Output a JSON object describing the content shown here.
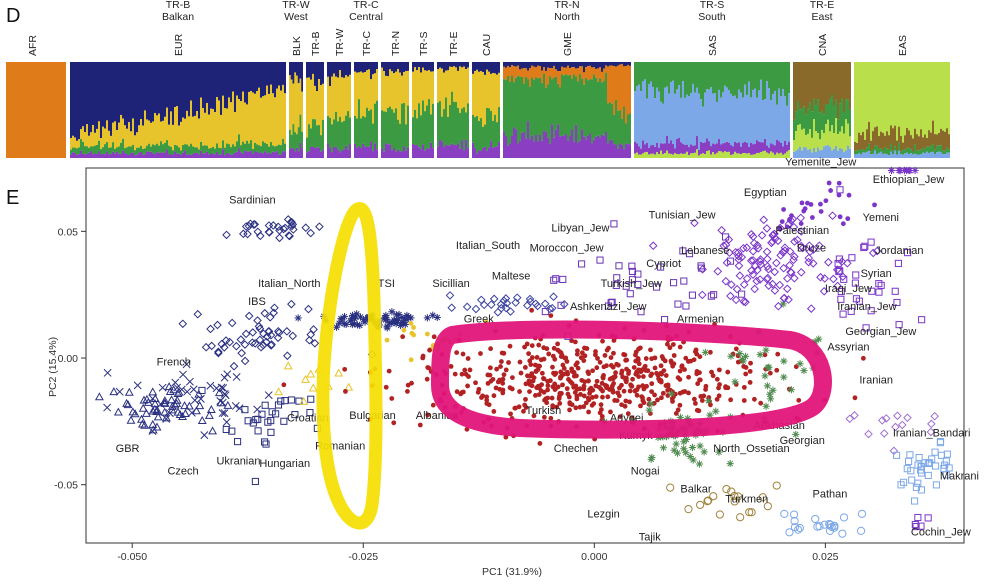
{
  "panel_d": {
    "letter": "D",
    "groups": [
      {
        "label1": "TR-B",
        "label2": "Balkan",
        "pop": "EUR",
        "colors": [
          "#1e2378",
          "#e8c42c",
          "#3c9a42",
          "#8a3fc2"
        ],
        "split": [
          0.55,
          0.32,
          0.08,
          0.05
        ]
      },
      {
        "label1": "TR-W",
        "label2": "West",
        "pop": "BLK",
        "colors": [
          "#1e2378",
          "#e8c42c",
          "#3c9a42",
          "#8a3fc2"
        ],
        "split": [
          0.2,
          0.5,
          0.2,
          0.1
        ]
      },
      {
        "label1": "",
        "label2": "",
        "pop": "TR-B",
        "colors": [
          "#1e2378",
          "#e8c42c",
          "#3c9a42",
          "#8a3fc2"
        ],
        "split": [
          0.2,
          0.45,
          0.25,
          0.1
        ]
      },
      {
        "label1": "",
        "label2": "",
        "pop": "TR-W",
        "colors": [
          "#1e2378",
          "#e8c42c",
          "#3c9a42",
          "#8a3fc2"
        ],
        "split": [
          0.15,
          0.45,
          0.3,
          0.1
        ]
      },
      {
        "label1": "TR-C",
        "label2": "Central",
        "pop": "TR-C",
        "colors": [
          "#1e2378",
          "#e8c42c",
          "#3c9a42",
          "#8a3fc2"
        ],
        "split": [
          0.1,
          0.4,
          0.38,
          0.12
        ]
      },
      {
        "label1": "",
        "label2": "",
        "pop": "TR-N",
        "colors": [
          "#1e2378",
          "#e8c42c",
          "#3c9a42",
          "#8a3fc2"
        ],
        "split": [
          0.1,
          0.42,
          0.38,
          0.1
        ]
      },
      {
        "label1": "",
        "label2": "",
        "pop": "TR-S",
        "colors": [
          "#1e2378",
          "#e8c42c",
          "#3c9a42",
          "#8a3fc2"
        ],
        "split": [
          0.08,
          0.4,
          0.4,
          0.12
        ]
      },
      {
        "label1": "",
        "label2": "",
        "pop": "TR-E",
        "colors": [
          "#1e2378",
          "#e8c42c",
          "#3c9a42",
          "#8a3fc2"
        ],
        "split": [
          0.06,
          0.38,
          0.42,
          0.14
        ]
      },
      {
        "label1": "",
        "label2": "",
        "pop": "CAU",
        "colors": [
          "#1e2378",
          "#e8c42c",
          "#3c9a42",
          "#8a3fc2"
        ],
        "split": [
          0.1,
          0.45,
          0.35,
          0.1
        ]
      },
      {
        "label1": "TR-N",
        "label2": "North",
        "pop": "GME",
        "colors": [
          "#1e2378",
          "#e07b1a",
          "#3c9a42",
          "#8a3fc2"
        ],
        "split": [
          0.05,
          0.25,
          0.5,
          0.2
        ]
      },
      {
        "label1": "TR-S",
        "label2": "South",
        "pop": "SAS",
        "colors": [
          "#3c9a42",
          "#7da8e8",
          "#8a3fc2",
          "#b9e04a"
        ],
        "split": [
          0.3,
          0.55,
          0.1,
          0.05
        ]
      },
      {
        "label1": "TR-E",
        "label2": "East",
        "pop": "CNA",
        "colors": [
          "#8a6a2a",
          "#3c9a42",
          "#b9e04a",
          "#7da8e8"
        ],
        "split": [
          0.45,
          0.25,
          0.2,
          0.1
        ]
      },
      {
        "label1": "",
        "label2": "",
        "pop": "EAS",
        "colors": [
          "#b9e04a",
          "#8a6a2a",
          "#3c9a42",
          "#7da8e8"
        ],
        "split": [
          0.75,
          0.15,
          0.05,
          0.05
        ]
      }
    ],
    "afr": {
      "pop": "AFR",
      "color": "#e07b1a"
    }
  },
  "chart_data": {
    "type": "scatter",
    "panel_letter": "E",
    "xlabel": "PC1 (31.9%)",
    "ylabel": "PC2 (15.4%)",
    "xlim": [
      -0.055,
      0.04
    ],
    "ylim": [
      -0.073,
      0.075
    ],
    "xticks": [
      {
        "v": -0.05,
        "label": "-0.050"
      },
      {
        "v": -0.025,
        "label": "-0.025"
      },
      {
        "v": 0.0,
        "label": "0.000"
      },
      {
        "v": 0.025,
        "label": "0.025"
      }
    ],
    "yticks": [
      {
        "v": 0.05,
        "label": "0.05"
      },
      {
        "v": 0.0,
        "label": "0.00"
      },
      {
        "v": -0.05,
        "label": "-0.05"
      }
    ],
    "labels": [
      {
        "text": "Sardinian",
        "x": -0.037,
        "y": 0.061
      },
      {
        "text": "Italian_North",
        "x": -0.033,
        "y": 0.028
      },
      {
        "text": "IBS",
        "x": -0.0365,
        "y": 0.021
      },
      {
        "text": "TSI",
        "x": -0.0225,
        "y": 0.028
      },
      {
        "text": "French",
        "x": -0.0455,
        "y": -0.003
      },
      {
        "text": "Croatian",
        "x": -0.031,
        "y": -0.025
      },
      {
        "text": "Bulgarian",
        "x": -0.024,
        "y": -0.024
      },
      {
        "text": "Albanian",
        "x": -0.017,
        "y": -0.024
      },
      {
        "text": "Romanian",
        "x": -0.0275,
        "y": -0.036
      },
      {
        "text": "Hungarian",
        "x": -0.0335,
        "y": -0.043
      },
      {
        "text": "GBR",
        "x": -0.0505,
        "y": -0.037
      },
      {
        "text": "Czech",
        "x": -0.0445,
        "y": -0.046
      },
      {
        "text": "Ukranian",
        "x": -0.0385,
        "y": -0.042
      },
      {
        "text": "Italian_South",
        "x": -0.0115,
        "y": 0.043
      },
      {
        "text": "Sicillian",
        "x": -0.0155,
        "y": 0.028
      },
      {
        "text": "Maltese",
        "x": -0.009,
        "y": 0.031
      },
      {
        "text": "Greek",
        "x": -0.0125,
        "y": 0.014
      },
      {
        "text": "Libyan_Jew",
        "x": -0.0015,
        "y": 0.05
      },
      {
        "text": "Tunisian_Jew",
        "x": 0.0095,
        "y": 0.055
      },
      {
        "text": "Moroccon_Jew",
        "x": -0.003,
        "y": 0.042
      },
      {
        "text": "Cypriot",
        "x": 0.0075,
        "y": 0.036
      },
      {
        "text": "Turkish_Jew",
        "x": 0.004,
        "y": 0.028
      },
      {
        "text": "Ashkenazi_Jew",
        "x": 0.0015,
        "y": 0.019
      },
      {
        "text": "Lebanese",
        "x": 0.012,
        "y": 0.041
      },
      {
        "text": "Egyptian",
        "x": 0.0185,
        "y": 0.064
      },
      {
        "text": "Yemenite_Jew",
        "x": 0.0245,
        "y": 0.076
      },
      {
        "text": "Ethiopian_Jew",
        "x": 0.034,
        "y": 0.069
      },
      {
        "text": "Yemeni",
        "x": 0.031,
        "y": 0.054
      },
      {
        "text": "Palestinian",
        "x": 0.0225,
        "y": 0.049
      },
      {
        "text": "Druze",
        "x": 0.0235,
        "y": 0.042
      },
      {
        "text": "Jordanian",
        "x": 0.033,
        "y": 0.041
      },
      {
        "text": "Syrian",
        "x": 0.0305,
        "y": 0.032
      },
      {
        "text": "Iraqi_Jew",
        "x": 0.0275,
        "y": 0.026
      },
      {
        "text": "Iranian_Jew",
        "x": 0.0295,
        "y": 0.019
      },
      {
        "text": "Georgian_Jew",
        "x": 0.031,
        "y": 0.009
      },
      {
        "text": "Armenian",
        "x": 0.0115,
        "y": 0.014
      },
      {
        "text": "Assyrian",
        "x": 0.0275,
        "y": 0.003
      },
      {
        "text": "Iranian",
        "x": 0.0305,
        "y": -0.01
      },
      {
        "text": "Turkish",
        "x": -0.0055,
        "y": -0.022
      },
      {
        "text": "Adygei",
        "x": 0.0035,
        "y": -0.025
      },
      {
        "text": "Kumyk",
        "x": 0.0045,
        "y": -0.032
      },
      {
        "text": "Chechen",
        "x": -0.002,
        "y": -0.037
      },
      {
        "text": "Nogai",
        "x": 0.0055,
        "y": -0.046
      },
      {
        "text": "Balkar",
        "x": 0.011,
        "y": -0.053
      },
      {
        "text": "Lezgin",
        "x": 0.001,
        "y": -0.063
      },
      {
        "text": "Tajik",
        "x": 0.006,
        "y": -0.072
      },
      {
        "text": "North_Ossetian",
        "x": 0.017,
        "y": -0.037
      },
      {
        "text": "Abkhasian",
        "x": 0.02,
        "y": -0.028
      },
      {
        "text": "Georgian",
        "x": 0.0225,
        "y": -0.034
      },
      {
        "text": "Turkmen",
        "x": 0.0165,
        "y": -0.057
      },
      {
        "text": "Pathan",
        "x": 0.0255,
        "y": -0.055
      },
      {
        "text": "Iranian_Bandari",
        "x": 0.0365,
        "y": -0.031
      },
      {
        "text": "Makrani",
        "x": 0.0395,
        "y": -0.048
      },
      {
        "text": "Cochin_Jew",
        "x": 0.0375,
        "y": -0.07
      }
    ],
    "clusters": [
      {
        "cx": -0.046,
        "cy": -0.02,
        "sx": 0.0035,
        "sy": 0.004,
        "n": 60,
        "color": "#2a3080",
        "shape": "triangle"
      },
      {
        "cx": -0.043,
        "cy": -0.016,
        "sx": 0.004,
        "sy": 0.006,
        "n": 40,
        "color": "#2a3080",
        "shape": "cross"
      },
      {
        "cx": -0.036,
        "cy": 0.009,
        "sx": 0.004,
        "sy": 0.005,
        "n": 55,
        "color": "#2a3080",
        "shape": "diamond"
      },
      {
        "cx": -0.0355,
        "cy": 0.051,
        "sx": 0.0025,
        "sy": 0.002,
        "n": 30,
        "color": "#2a3080",
        "shape": "diamondx"
      },
      {
        "cx": -0.034,
        "cy": -0.022,
        "sx": 0.0035,
        "sy": 0.006,
        "n": 30,
        "color": "#2a3080",
        "shape": "boxplus"
      },
      {
        "cx": -0.0235,
        "cy": 0.015,
        "sx": 0.003,
        "sy": 0.002,
        "n": 65,
        "color": "#2a3080",
        "shape": "star"
      },
      {
        "cx": -0.03,
        "cy": -0.01,
        "sx": 0.002,
        "sy": 0.003,
        "n": 10,
        "color": "#e8c42c",
        "shape": "triangle"
      },
      {
        "cx": -0.019,
        "cy": 0.006,
        "sx": 0.002,
        "sy": 0.004,
        "n": 18,
        "color": "#e8c42c",
        "shape": "dot"
      },
      {
        "cx": -0.01,
        "cy": 0.021,
        "sx": 0.003,
        "sy": 0.002,
        "n": 28,
        "color": "#3a42a0",
        "shape": "diamondx"
      },
      {
        "cx": 0.0,
        "cy": -0.008,
        "sx": 0.01,
        "sy": 0.009,
        "n": 560,
        "color": "#b22222",
        "shape": "dot"
      },
      {
        "cx": 0.01,
        "cy": -0.03,
        "sx": 0.003,
        "sy": 0.006,
        "n": 60,
        "color": "#4f8a4f",
        "shape": "star"
      },
      {
        "cx": 0.019,
        "cy": -0.005,
        "sx": 0.003,
        "sy": 0.01,
        "n": 30,
        "color": "#4f8a4f",
        "shape": "star"
      },
      {
        "cx": 0.019,
        "cy": 0.038,
        "sx": 0.004,
        "sy": 0.009,
        "n": 120,
        "color": "#7b35c9",
        "shape": "diamond"
      },
      {
        "cx": 0.024,
        "cy": 0.058,
        "sx": 0.003,
        "sy": 0.006,
        "n": 25,
        "color": "#7b35c9",
        "shape": "dot"
      },
      {
        "cx": 0.028,
        "cy": 0.03,
        "sx": 0.003,
        "sy": 0.01,
        "n": 30,
        "color": "#7b35c9",
        "shape": "box"
      },
      {
        "cx": 0.034,
        "cy": 0.08,
        "sx": 0.001,
        "sy": 0.002,
        "n": 10,
        "color": "#7b35c9",
        "shape": "star"
      },
      {
        "cx": 0.033,
        "cy": -0.025,
        "sx": 0.003,
        "sy": 0.004,
        "n": 14,
        "color": "#a070d0",
        "shape": "diamond"
      },
      {
        "cx": 0.036,
        "cy": -0.045,
        "sx": 0.002,
        "sy": 0.005,
        "n": 35,
        "color": "#7da8e8",
        "shape": "box"
      },
      {
        "cx": 0.025,
        "cy": -0.065,
        "sx": 0.002,
        "sy": 0.003,
        "n": 22,
        "color": "#7da8e8",
        "shape": "circle"
      },
      {
        "cx": 0.014,
        "cy": -0.058,
        "sx": 0.003,
        "sy": 0.005,
        "n": 18,
        "color": "#a0823c",
        "shape": "circle"
      },
      {
        "cx": 0.004,
        "cy": 0.027,
        "sx": 0.0055,
        "sy": 0.01,
        "n": 40,
        "color": "#6a34b5",
        "shape": "box"
      },
      {
        "cx": 0.035,
        "cy": -0.067,
        "sx": 0.0008,
        "sy": 0.003,
        "n": 5,
        "color": "#7b35c9",
        "shape": "boxx"
      }
    ]
  }
}
